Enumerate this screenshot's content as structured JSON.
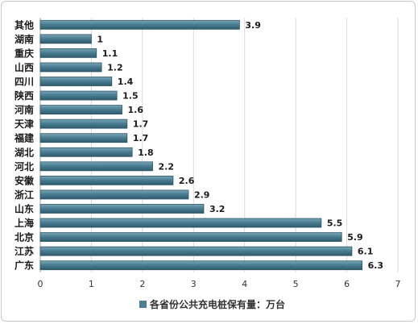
{
  "chart_data": {
    "type": "bar",
    "orientation": "horizontal",
    "categories": [
      "其他",
      "湖南",
      "重庆",
      "山西",
      "四川",
      "陕西",
      "河南",
      "天津",
      "福建",
      "湖北",
      "河北",
      "安徽",
      "浙江",
      "山东",
      "上海",
      "北京",
      "江苏",
      "广东"
    ],
    "values": [
      3.9,
      1,
      1.1,
      1.2,
      1.4,
      1.5,
      1.6,
      1.7,
      1.7,
      1.8,
      2.2,
      2.6,
      2.9,
      3.2,
      5.5,
      5.9,
      6.1,
      6.3
    ],
    "value_labels": [
      "3.9",
      "1",
      "1.1",
      "1.2",
      "1.4",
      "1.5",
      "1.6",
      "1.7",
      "1.7",
      "1.8",
      "2.2",
      "2.6",
      "2.9",
      "3.2",
      "5.5",
      "5.9",
      "6.1",
      "6.3"
    ],
    "series": [
      {
        "name": "各省份公共充电桩保有量：万台"
      }
    ],
    "xlim": [
      0,
      7
    ],
    "xticks": [
      "0",
      "1",
      "2",
      "3",
      "4",
      "5",
      "6",
      "7"
    ],
    "grid": true,
    "legend": "bottom-center",
    "bar_color": "#4a7e92"
  }
}
